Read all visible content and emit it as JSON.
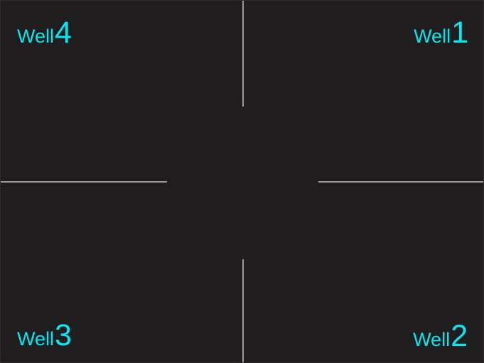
{
  "colors": {
    "background": "#1f1d1e",
    "divider": "#9a9a9a",
    "label": "#00e8f2"
  },
  "wells": {
    "top_left": {
      "word": "Well",
      "number": "4"
    },
    "top_right": {
      "word": "Well",
      "number": "1"
    },
    "bottom_left": {
      "word": "Well",
      "number": "3"
    },
    "bottom_right": {
      "word": "Well",
      "number": "2"
    }
  }
}
